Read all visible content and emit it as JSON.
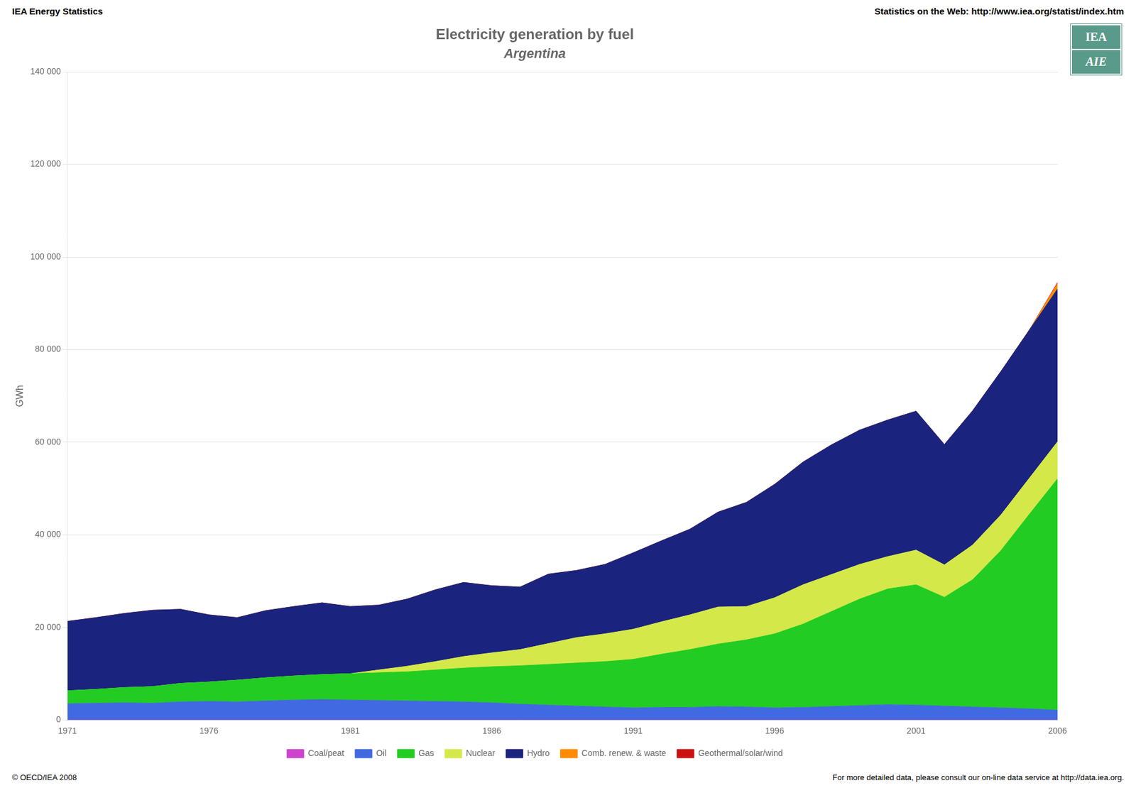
{
  "chart_data": {
    "type": "area",
    "stacked": true,
    "title": "Electricity generation by fuel",
    "subtitle": "Argentina",
    "header_left": "IEA Energy Statistics",
    "header_right": "Statistics on the Web: http://www.iea.org/statist/index.htm",
    "footer_left": "© OECD/IEA 2008",
    "footer_right": "For more detailed data, please consult our on-line data service at http://data.iea.org.",
    "logo_texts": [
      "IEA",
      "AIE"
    ],
    "ylabel": "GWh",
    "x": [
      1971,
      1972,
      1973,
      1974,
      1975,
      1976,
      1977,
      1978,
      1979,
      1980,
      1981,
      1982,
      1983,
      1984,
      1985,
      1986,
      1987,
      1988,
      1989,
      1990,
      1991,
      1992,
      1993,
      1994,
      1995,
      1996,
      1997,
      1998,
      1999,
      2000,
      2001,
      2002,
      2003,
      2004,
      2005,
      2006
    ],
    "xlim": [
      1971,
      2006
    ],
    "xticks": [
      1971,
      1976,
      1981,
      1986,
      1991,
      1996,
      2001,
      2006
    ],
    "ylim": [
      0,
      140000
    ],
    "yticks": [
      0,
      {
        "value": 20000,
        "label": "20 000"
      },
      {
        "value": 40000,
        "label": "40 000"
      },
      {
        "value": 60000,
        "label": "60 000"
      },
      {
        "value": 80000,
        "label": "80 000"
      },
      {
        "value": 100000,
        "label": "100 000"
      },
      {
        "value": 120000,
        "label": "120 000"
      },
      {
        "value": 140000,
        "label": "140 000"
      }
    ],
    "grid": true,
    "legend": "bottom",
    "series": [
      {
        "name": "Coal/peat",
        "color": "#cc44cc",
        "values": [
          0,
          0,
          0,
          0,
          0,
          0,
          0,
          0,
          0,
          0,
          0,
          0,
          0,
          0,
          0,
          0,
          0,
          0,
          0,
          0,
          0,
          0,
          0,
          0,
          0,
          0,
          0,
          0,
          0,
          0,
          0,
          0,
          0,
          0,
          0,
          0
        ]
      },
      {
        "name": "Oil",
        "color": "#4169e1",
        "values": [
          3500,
          3600,
          3700,
          3600,
          3900,
          4000,
          3900,
          4100,
          4300,
          4400,
          4300,
          4200,
          4100,
          4000,
          3900,
          3700,
          3400,
          3200,
          3000,
          2800,
          2600,
          2700,
          2700,
          2900,
          2800,
          2600,
          2700,
          2900,
          3100,
          3300,
          3200,
          3000,
          2800,
          2600,
          2400,
          2100
        ]
      },
      {
        "name": "Gas",
        "color": "#22cc22",
        "values": [
          2800,
          3000,
          3300,
          3600,
          4000,
          4200,
          4700,
          5000,
          5200,
          5400,
          5700,
          6000,
          6300,
          6800,
          7300,
          7800,
          8300,
          8800,
          9300,
          9800,
          10500,
          11500,
          12500,
          13500,
          14500,
          16000,
          18000,
          20500,
          23000,
          25000,
          26000,
          23500,
          27500,
          34000,
          42000,
          50000
        ]
      },
      {
        "name": "Nuclear",
        "color": "#d4e84a",
        "values": [
          0,
          0,
          0,
          0,
          0,
          0,
          0,
          0,
          0,
          0,
          0,
          600,
          1200,
          1800,
          2500,
          3000,
          3500,
          4500,
          5500,
          6000,
          6500,
          7000,
          7500,
          8000,
          7200,
          7800,
          8500,
          8000,
          7500,
          7000,
          7500,
          7000,
          7500,
          7700,
          7800,
          8000
        ]
      },
      {
        "name": "Hydro",
        "color": "#1a237e",
        "values": [
          15000,
          15500,
          16000,
          16500,
          16000,
          14500,
          13500,
          14500,
          15000,
          15500,
          14500,
          14000,
          14500,
          15500,
          16000,
          14500,
          13500,
          15000,
          14500,
          15000,
          16500,
          17500,
          18500,
          20500,
          22500,
          24500,
          26500,
          28000,
          29000,
          29500,
          30000,
          26000,
          29000,
          31000,
          32000,
          33000
        ]
      },
      {
        "name": "Comb. renew. & waste",
        "color": "#ff8c00",
        "values": [
          0,
          0,
          0,
          0,
          0,
          0,
          0,
          0,
          0,
          0,
          0,
          0,
          0,
          0,
          0,
          0,
          0,
          0,
          0,
          0,
          0,
          0,
          0,
          0,
          0,
          0,
          0,
          0,
          0,
          0,
          0,
          0,
          0,
          0,
          0,
          1200
        ]
      },
      {
        "name": "Geothermal/solar/wind",
        "color": "#cc1111",
        "values": [
          0,
          0,
          0,
          0,
          0,
          0,
          0,
          0,
          0,
          0,
          0,
          0,
          0,
          0,
          0,
          0,
          0,
          0,
          0,
          0,
          0,
          0,
          0,
          0,
          0,
          0,
          0,
          0,
          0,
          0,
          0,
          0,
          0,
          0,
          0,
          200
        ]
      }
    ]
  }
}
